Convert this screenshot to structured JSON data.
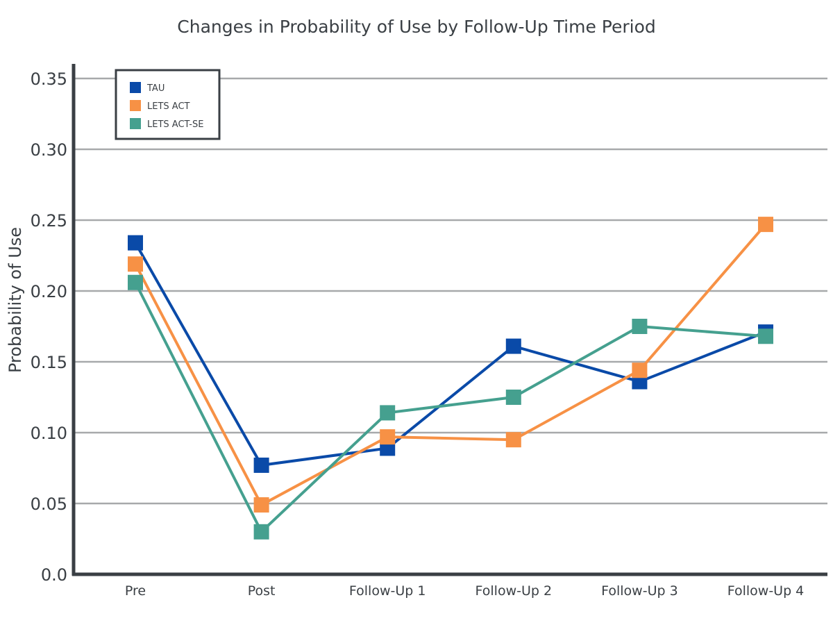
{
  "chart_data": {
    "type": "line",
    "title": "Changes in Probability of Use by Follow-Up Time Period",
    "xlabel": "",
    "ylabel": "Probability of Use",
    "categories": [
      "Pre",
      "Post",
      "Follow-Up 1",
      "Follow-Up 2",
      "Follow-Up 3",
      "Follow-Up 4"
    ],
    "ylim": [
      0,
      0.35
    ],
    "yticks": [
      {
        "value": 0.0,
        "label": "0.0"
      },
      {
        "value": 0.05,
        "label": "0.05"
      },
      {
        "value": 0.1,
        "label": "0.10"
      },
      {
        "value": 0.15,
        "label": "0.15"
      },
      {
        "value": 0.2,
        "label": "0.20"
      },
      {
        "value": 0.25,
        "label": "0.25"
      },
      {
        "value": 0.3,
        "label": "0.30"
      },
      {
        "value": 0.35,
        "label": "0.35"
      }
    ],
    "grid": true,
    "legend_position": "top-left",
    "series": [
      {
        "name": "TAU",
        "color": "#0a4aa8",
        "values": [
          0.234,
          0.077,
          0.089,
          0.161,
          0.136,
          0.171
        ]
      },
      {
        "name": "LETS ACT",
        "color": "#f79145",
        "values": [
          0.219,
          0.049,
          0.097,
          0.095,
          0.144,
          0.247
        ]
      },
      {
        "name": "LETS ACT-SE",
        "color": "#45a08f",
        "values": [
          0.206,
          0.03,
          0.114,
          0.125,
          0.175,
          0.168
        ]
      }
    ]
  }
}
